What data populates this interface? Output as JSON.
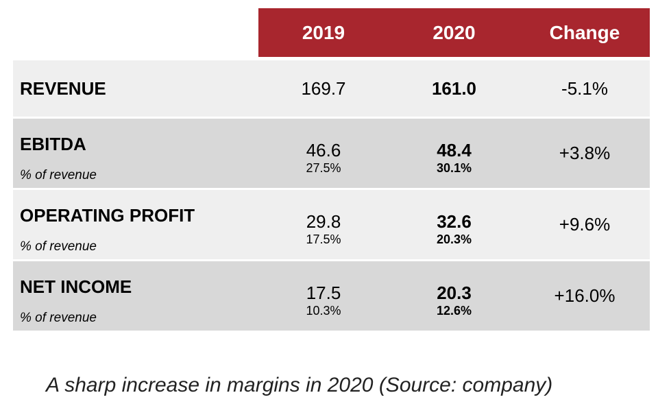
{
  "table": {
    "columns": [
      "2019",
      "2020",
      "Change"
    ],
    "rows": [
      {
        "label": "REVENUE",
        "sub_label": "",
        "v2019": "169.7",
        "v2019_pct": "",
        "v2020": "161.0",
        "v2020_pct": "",
        "change": "-5.1%"
      },
      {
        "label": "EBITDA",
        "sub_label": "% of revenue",
        "v2019": "46.6",
        "v2019_pct": "27.5%",
        "v2020": "48.4",
        "v2020_pct": "30.1%",
        "change": "+3.8%"
      },
      {
        "label": "OPERATING PROFIT",
        "sub_label": "% of revenue",
        "v2019": "29.8",
        "v2019_pct": "17.5%",
        "v2020": "32.6",
        "v2020_pct": "20.3%",
        "change": "+9.6%"
      },
      {
        "label": "NET INCOME",
        "sub_label": "% of revenue",
        "v2019": "17.5",
        "v2019_pct": "10.3%",
        "v2020": "20.3",
        "v2020_pct": "12.6%",
        "change": "+16.0%"
      }
    ]
  },
  "caption": "A sharp increase in margins in 2020 (Source: company)",
  "colors": {
    "header_bg": "#a8262e",
    "header_text": "#ffffff",
    "row_light": "#efefef",
    "row_dark": "#d8d8d8"
  }
}
